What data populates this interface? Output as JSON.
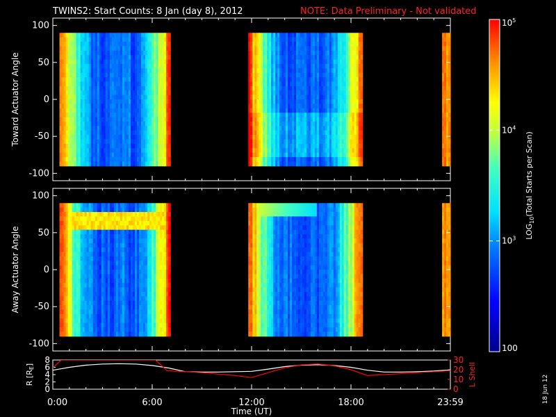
{
  "title": "TWINS2: Start Counts:  8 Jan (day   8), 2012",
  "note": "NOTE: Data Preliminary - Not validated",
  "stamp": "18 Jun 12",
  "colorbar": {
    "label_pre": "LOG",
    "label_sub": "10",
    "label_post": "(Total Starts per Scan)",
    "ticks": [
      {
        "value": 100,
        "label": "100"
      },
      {
        "value": 1000,
        "label": "10",
        "exp": "3"
      },
      {
        "value": 10000,
        "label": "10",
        "exp": "4"
      },
      {
        "value": 100000,
        "label": "10",
        "exp": "5"
      }
    ]
  },
  "chart_data": [
    {
      "type": "heatmap",
      "ylabel": "Toward Actuator Angle",
      "ylim": [
        -110,
        110
      ],
      "yticks": [
        "100",
        "50",
        "0",
        "-50",
        "-100"
      ],
      "ytick_values": [
        100,
        50,
        0,
        -50,
        -100
      ],
      "xlim_hours": [
        0,
        24
      ],
      "data_angle_range": [
        -90,
        90
      ],
      "data_intervals_hours": [
        [
          0.4,
          7.1
        ],
        [
          11.8,
          18.7
        ],
        [
          23.5,
          24.0
        ]
      ],
      "color_scale": "log10 counts, 100 to 100000, rainbow",
      "typical_levels": "intervals edges ~1e5 (red), centers ~1e2.3-1e3 (blue)"
    },
    {
      "type": "heatmap",
      "ylabel": "Away Actuator Angle",
      "ylim": [
        -110,
        110
      ],
      "yticks": [
        "100",
        "50",
        "0",
        "-50",
        "-100"
      ],
      "ytick_values": [
        100,
        50,
        0,
        -50,
        -100
      ],
      "xlim_hours": [
        0,
        24
      ],
      "data_angle_range": [
        -90,
        90
      ],
      "data_intervals_hours": [
        [
          0.4,
          7.1
        ],
        [
          11.8,
          18.7
        ],
        [
          23.5,
          24.0
        ]
      ],
      "color_scale": "log10 counts, 100 to 100000, rainbow",
      "typical_levels": "enhanced (~1e4.5) near +70 deg in first interval, near +90 deg in second"
    },
    {
      "type": "line",
      "xlabel": "Time (UT)",
      "xticks": [
        "0:00",
        "6:00",
        "12:00",
        "18:00",
        "23:59"
      ],
      "xtick_hours": [
        0,
        6,
        12,
        18,
        24
      ],
      "ylabel_left": "R [R",
      "ylabel_left_sub": "E",
      "ylabel_left_post": "]",
      "yticks_left": [
        "8",
        "6",
        "4",
        "2",
        "0"
      ],
      "ylim_left": [
        0,
        8
      ],
      "ylabel_right": "L Shell",
      "yticks_right": [
        "30",
        "20",
        "10",
        "0"
      ],
      "ylim_right": [
        0,
        30
      ],
      "series": [
        {
          "axis": "left",
          "color": "#ffffff",
          "x": [
            0,
            1,
            2,
            3,
            4,
            5,
            6,
            7,
            8,
            9,
            10,
            11,
            12,
            13,
            14,
            15,
            16,
            17,
            18,
            19,
            20,
            21,
            22,
            23,
            24
          ],
          "y": [
            5.2,
            6.0,
            6.6,
            6.9,
            7.0,
            6.9,
            6.5,
            5.8,
            4.8,
            4.7,
            4.7,
            4.8,
            4.9,
            5.5,
            6.2,
            6.6,
            6.7,
            6.5,
            6.0,
            5.2,
            4.7,
            4.7,
            4.8,
            5.0,
            5.3
          ]
        },
        {
          "axis": "right",
          "color": "#ff0000",
          "x": [
            0,
            0.5,
            1.0,
            5.8,
            6.2,
            6.9,
            9,
            11,
            12,
            13,
            14,
            15,
            16,
            17,
            18,
            19,
            20,
            21,
            22,
            23,
            24
          ],
          "y": [
            22,
            30,
            30,
            30,
            30,
            19,
            17,
            14,
            12,
            17,
            22,
            25,
            26,
            24,
            20,
            14,
            15,
            16,
            17,
            18,
            19
          ]
        }
      ]
    }
  ]
}
